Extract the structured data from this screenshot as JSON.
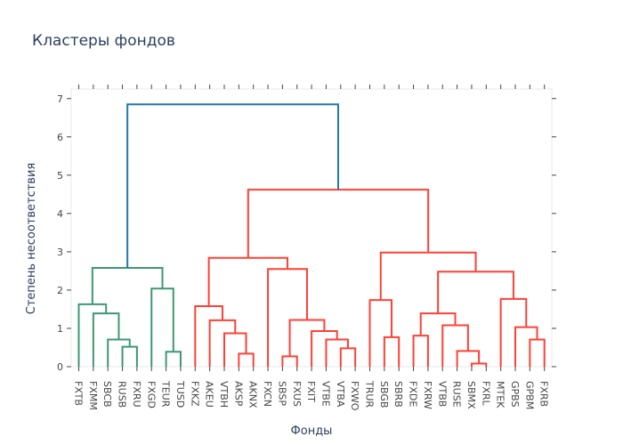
{
  "chart_data": {
    "type": "dendrogram",
    "title": "Кластеры фондов",
    "xlabel": "Фонды",
    "ylabel": "Степень несоответствия",
    "ylim": [
      0,
      7.25
    ],
    "yticks": [
      0,
      1,
      2,
      3,
      4,
      5,
      6,
      7
    ],
    "leaves": [
      "FXTB",
      "FXMM",
      "SBCB",
      "RUSB",
      "FXRU",
      "FXGD",
      "TEUR",
      "TUSD",
      "FXKZ",
      "AKEU",
      "VTBH",
      "AKSP",
      "AKNX",
      "FXCN",
      "SBSP",
      "FXUS",
      "FXIT",
      "VTBE",
      "VTBA",
      "FXWO",
      "TRUR",
      "SBGB",
      "SBRB",
      "FXDE",
      "FXRW",
      "VTBB",
      "RUSE",
      "SBMX",
      "FXRL",
      "MTEK",
      "GPBS",
      "GPBM",
      "FXRB"
    ],
    "colors": {
      "root": "#1f77b4",
      "cluster_1": "#3d9970",
      "cluster_2": "#ff4136"
    },
    "merges": [
      {
        "left": 3,
        "right": 4,
        "height": 0.52,
        "color": "cluster_1"
      },
      {
        "left": 2,
        "right": 3.5,
        "height": 0.71,
        "color": "cluster_1"
      },
      {
        "left": 1,
        "right": 2.75,
        "height": 1.39,
        "color": "cluster_1"
      },
      {
        "left": 0,
        "right": 1.875,
        "height": 1.63,
        "color": "cluster_1"
      },
      {
        "left": 6,
        "right": 7,
        "height": 0.39,
        "color": "cluster_1"
      },
      {
        "left": 5,
        "right": 6.5,
        "height": 2.04,
        "color": "cluster_1"
      },
      {
        "left": 0.9375,
        "right": 5.75,
        "height": 2.58,
        "color": "cluster_1"
      },
      {
        "left": 11,
        "right": 12,
        "height": 0.34,
        "color": "cluster_2"
      },
      {
        "left": 10,
        "right": 11.5,
        "height": 0.87,
        "color": "cluster_2"
      },
      {
        "left": 9,
        "right": 10.75,
        "height": 1.21,
        "color": "cluster_2"
      },
      {
        "left": 8,
        "right": 9.875,
        "height": 1.58,
        "color": "cluster_2"
      },
      {
        "left": 14,
        "right": 15,
        "height": 0.27,
        "color": "cluster_2"
      },
      {
        "left": 18,
        "right": 19,
        "height": 0.48,
        "color": "cluster_2"
      },
      {
        "left": 17,
        "right": 18.5,
        "height": 0.71,
        "color": "cluster_2"
      },
      {
        "left": 16,
        "right": 17.75,
        "height": 0.93,
        "color": "cluster_2"
      },
      {
        "left": 14.5,
        "right": 16.875,
        "height": 1.22,
        "color": "cluster_2"
      },
      {
        "left": 13,
        "right": 15.6875,
        "height": 2.55,
        "color": "cluster_2"
      },
      {
        "left": 8.9375,
        "right": 14.34375,
        "height": 2.84,
        "color": "cluster_2"
      },
      {
        "left": 21,
        "right": 22,
        "height": 0.77,
        "color": "cluster_2"
      },
      {
        "left": 20,
        "right": 21.5,
        "height": 1.74,
        "color": "cluster_2"
      },
      {
        "left": 23,
        "right": 24,
        "height": 0.81,
        "color": "cluster_2"
      },
      {
        "left": 27,
        "right": 28,
        "height": 0.08,
        "color": "cluster_2"
      },
      {
        "left": 26,
        "right": 27.5,
        "height": 0.41,
        "color": "cluster_2"
      },
      {
        "left": 25,
        "right": 26.75,
        "height": 1.08,
        "color": "cluster_2"
      },
      {
        "left": 23.5,
        "right": 25.875,
        "height": 1.39,
        "color": "cluster_2"
      },
      {
        "left": 31,
        "right": 32,
        "height": 0.71,
        "color": "cluster_2"
      },
      {
        "left": 30,
        "right": 31.5,
        "height": 1.03,
        "color": "cluster_2"
      },
      {
        "left": 29,
        "right": 30.75,
        "height": 1.77,
        "color": "cluster_2"
      },
      {
        "left": 24.6875,
        "right": 29.875,
        "height": 2.48,
        "color": "cluster_2"
      },
      {
        "left": 20.75,
        "right": 27.28125,
        "height": 2.98,
        "color": "cluster_2"
      },
      {
        "left": 11.640625,
        "right": 24.015625,
        "height": 4.62,
        "color": "cluster_2"
      },
      {
        "left": 3.34375,
        "right": 17.828125,
        "height": 6.85,
        "color": "root"
      }
    ]
  }
}
